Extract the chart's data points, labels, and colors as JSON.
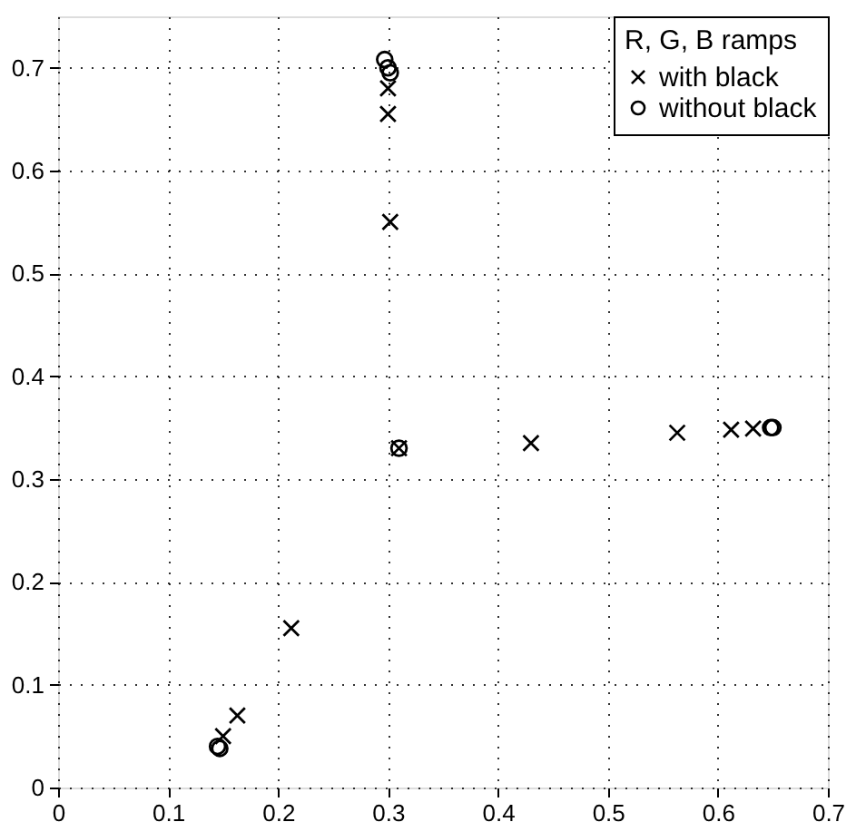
{
  "chart_data": {
    "type": "scatter",
    "legend_title": "R, G, B ramps",
    "legend": "top right",
    "grid": true,
    "xlim": [
      0,
      0.7
    ],
    "ylim": [
      0,
      0.75
    ],
    "xticks": [
      0,
      0.1,
      0.2,
      0.3,
      0.4,
      0.5,
      0.6,
      0.7
    ],
    "yticks": [
      0,
      0.1,
      0.2,
      0.3,
      0.4,
      0.5,
      0.6,
      0.7
    ],
    "series": [
      {
        "name": "with black",
        "color": "#000000",
        "marker": "cross",
        "x": [
          0.15,
          0.163,
          0.212,
          0.31,
          0.43,
          0.563,
          0.612,
          0.632,
          0.302,
          0.3,
          0.3
        ],
        "values": [
          0.05,
          0.07,
          0.155,
          0.33,
          0.335,
          0.345,
          0.348,
          0.349,
          0.55,
          0.655,
          0.68
        ]
      },
      {
        "name": "without black",
        "color": "#000000",
        "marker": "circle",
        "x": [
          0.145,
          0.147,
          0.31,
          0.648,
          0.65,
          0.297,
          0.3,
          0.302
        ],
        "values": [
          0.04,
          0.038,
          0.33,
          0.35,
          0.35,
          0.708,
          0.7,
          0.695
        ]
      }
    ]
  }
}
